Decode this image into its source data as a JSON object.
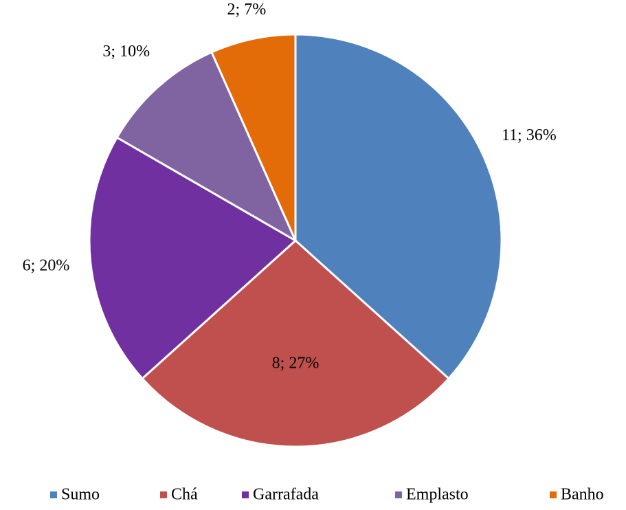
{
  "chart_data": {
    "type": "pie",
    "categories": [
      "Sumo",
      "Chá",
      "Garrafada",
      "Emplasto",
      "Banho"
    ],
    "values": [
      11,
      8,
      6,
      3,
      2
    ],
    "value_labels": [
      "11; 36%",
      "8; 27%",
      "6; 20%",
      "3; 10%",
      "2; 7%"
    ],
    "colors": [
      "#4f81bd",
      "#c0504d",
      "#7030a0",
      "#8064a2",
      "#e36c09"
    ],
    "legend": "bottom"
  }
}
